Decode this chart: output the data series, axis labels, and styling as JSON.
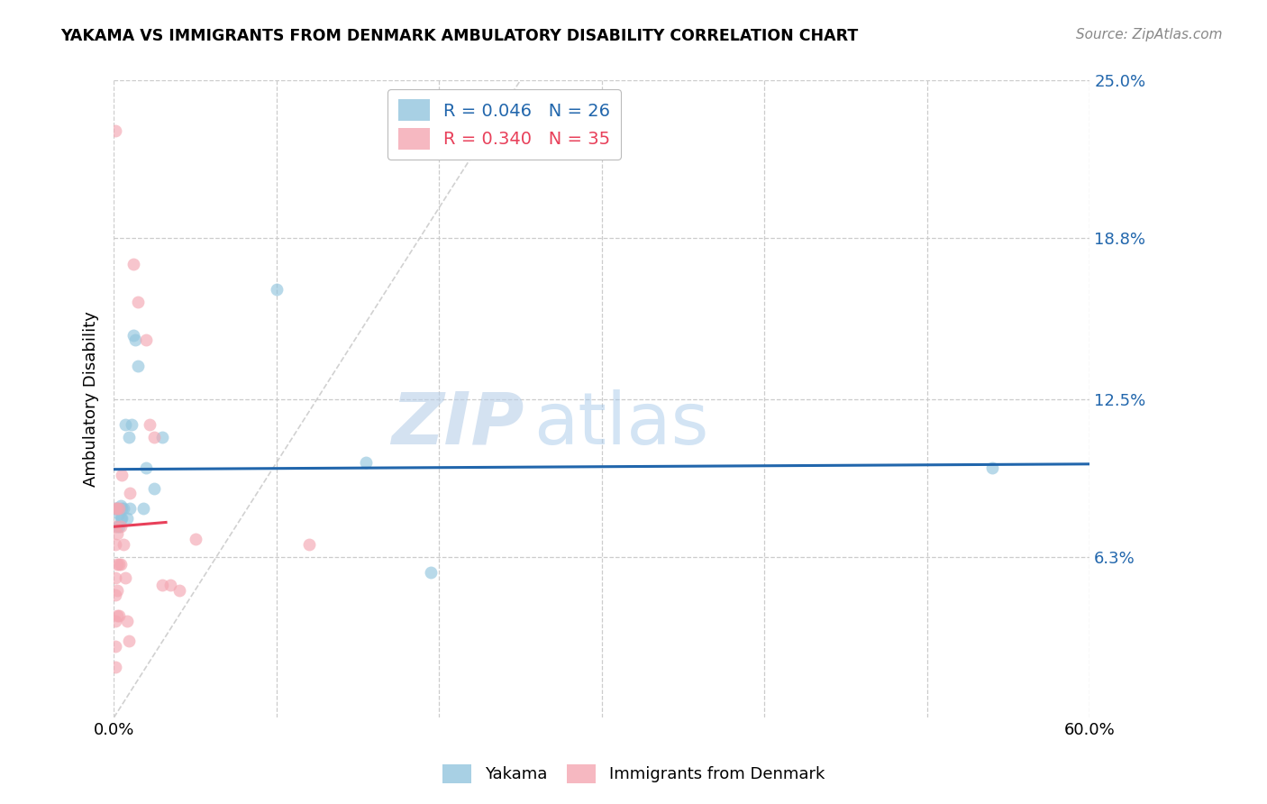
{
  "title": "YAKAMA VS IMMIGRANTS FROM DENMARK AMBULATORY DISABILITY CORRELATION CHART",
  "source": "Source: ZipAtlas.com",
  "ylabel": "Ambulatory Disability",
  "xlim": [
    0,
    0.6
  ],
  "ylim": [
    0,
    0.25
  ],
  "xticks": [
    0.0,
    0.1,
    0.2,
    0.3,
    0.4,
    0.5,
    0.6
  ],
  "xticklabels": [
    "0.0%",
    "",
    "",
    "",
    "",
    "",
    "60.0%"
  ],
  "ytick_right_labels": [
    "25.0%",
    "18.8%",
    "12.5%",
    "6.3%"
  ],
  "ytick_right_values": [
    0.25,
    0.188,
    0.125,
    0.063
  ],
  "legend_r1": "R = 0.046",
  "legend_n1": "N = 26",
  "legend_r2": "R = 0.340",
  "legend_n2": "N = 35",
  "blue_color": "#92c5de",
  "pink_color": "#f4a7b2",
  "blue_line_color": "#2166ac",
  "pink_line_color": "#e8405a",
  "diag_line_color": "#cccccc",
  "background": "#ffffff",
  "grid_color": "#cccccc",
  "yakama_x": [
    0.001,
    0.002,
    0.002,
    0.003,
    0.003,
    0.004,
    0.004,
    0.005,
    0.005,
    0.006,
    0.007,
    0.008,
    0.009,
    0.01,
    0.011,
    0.012,
    0.013,
    0.015,
    0.018,
    0.02,
    0.025,
    0.03,
    0.1,
    0.155,
    0.54,
    0.195
  ],
  "yakama_y": [
    0.082,
    0.082,
    0.075,
    0.08,
    0.075,
    0.083,
    0.078,
    0.082,
    0.078,
    0.082,
    0.115,
    0.078,
    0.11,
    0.082,
    0.115,
    0.15,
    0.148,
    0.138,
    0.082,
    0.098,
    0.09,
    0.11,
    0.168,
    0.1,
    0.098,
    0.057
  ],
  "denmark_x": [
    0.001,
    0.001,
    0.001,
    0.001,
    0.001,
    0.001,
    0.001,
    0.001,
    0.001,
    0.002,
    0.002,
    0.002,
    0.002,
    0.002,
    0.003,
    0.003,
    0.003,
    0.004,
    0.004,
    0.005,
    0.006,
    0.007,
    0.008,
    0.009,
    0.01,
    0.012,
    0.015,
    0.02,
    0.022,
    0.025,
    0.03,
    0.035,
    0.04,
    0.05,
    0.12
  ],
  "denmark_y": [
    0.23,
    0.082,
    0.075,
    0.068,
    0.055,
    0.048,
    0.038,
    0.028,
    0.02,
    0.082,
    0.072,
    0.06,
    0.05,
    0.04,
    0.082,
    0.06,
    0.04,
    0.075,
    0.06,
    0.095,
    0.068,
    0.055,
    0.038,
    0.03,
    0.088,
    0.178,
    0.163,
    0.148,
    0.115,
    0.11,
    0.052,
    0.052,
    0.05,
    0.07,
    0.068
  ],
  "watermark_zip": "ZIP",
  "watermark_atlas": "atlas",
  "marker_size": 100,
  "alpha": 0.65
}
